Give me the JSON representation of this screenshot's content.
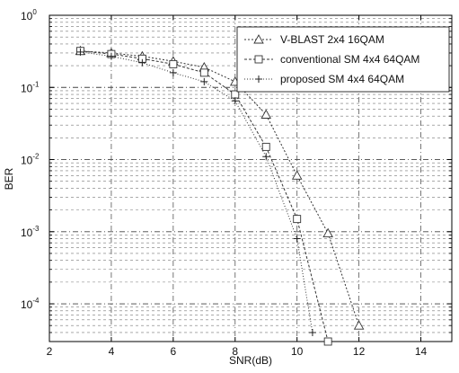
{
  "chart_data": {
    "type": "line",
    "title": "",
    "xlabel": "SNR(dB)",
    "ylabel": "BER",
    "xlim": [
      2,
      15
    ],
    "ylim": [
      3e-05,
      1
    ],
    "yscale": "log",
    "grid": true,
    "legend_position": "top-right",
    "x_ticks": [
      2,
      4,
      6,
      8,
      10,
      12,
      14
    ],
    "y_ticks": [
      {
        "value": 1,
        "base": "10",
        "exp": "0"
      },
      {
        "value": 0.1,
        "base": "10",
        "exp": "-1"
      },
      {
        "value": 0.01,
        "base": "10",
        "exp": "-2"
      },
      {
        "value": 0.001,
        "base": "10",
        "exp": "-3"
      },
      {
        "value": 0.0001,
        "base": "10",
        "exp": "-4"
      }
    ],
    "series": [
      {
        "name": "V-BLAST 2x4 16QAM",
        "marker": "triangle",
        "x": [
          3,
          4,
          5,
          6,
          7,
          8,
          9,
          10,
          11,
          12
        ],
        "y": [
          0.32,
          0.3,
          0.27,
          0.23,
          0.19,
          0.12,
          0.042,
          0.006,
          0.00095,
          5e-05
        ]
      },
      {
        "name": "conventional SM 4x4 64QAM",
        "marker": "square",
        "x": [
          3,
          4,
          5,
          6,
          7,
          8,
          9,
          10,
          11
        ],
        "y": [
          0.32,
          0.29,
          0.25,
          0.21,
          0.16,
          0.08,
          0.015,
          0.0015,
          3e-05
        ]
      },
      {
        "name": "proposed SM 4x4 64QAM",
        "marker": "plus",
        "x": [
          3,
          4,
          5,
          6,
          7,
          8,
          9,
          10,
          10.5
        ],
        "y": [
          0.31,
          0.27,
          0.22,
          0.16,
          0.12,
          0.065,
          0.011,
          0.0008,
          4e-05
        ]
      }
    ]
  }
}
